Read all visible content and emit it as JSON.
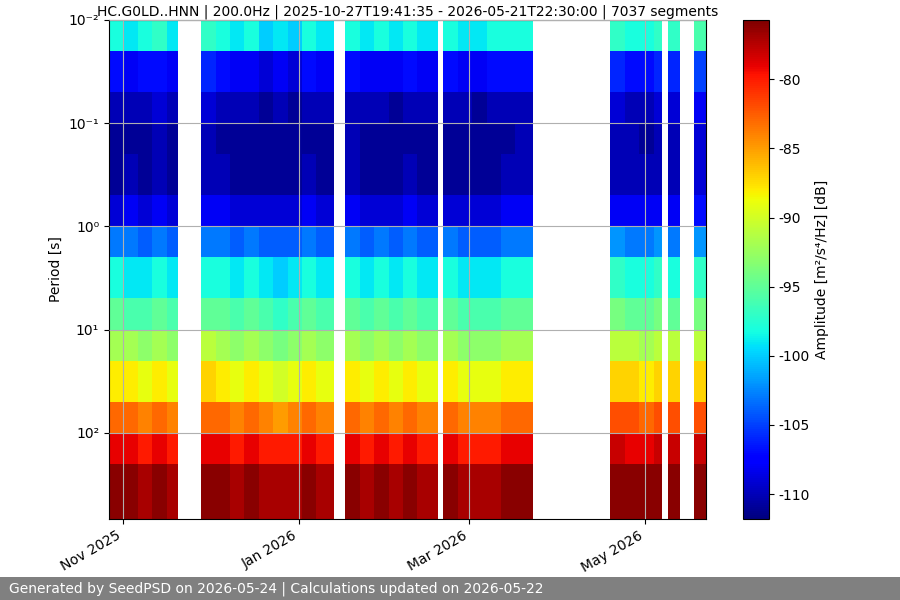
{
  "chart_data": {
    "type": "heatmap",
    "title": "HC.G0LD..HNN | 200.0Hz | 2025-10-27T19:41:35 - 2026-05-21T22:30:00 | 7037 segments",
    "y_label": "Period [s]",
    "colorbar_label": "Amplitude [m²/s⁴/Hz] [dB]",
    "footer": "Generated by SeedPSD on 2026-05-24 | Calculations updated on 2026-05-22",
    "log": "y",
    "grid": true,
    "x": [
      "2025-10-27",
      "2025-11-01",
      "2025-11-06",
      "2025-11-11",
      "2025-11-16",
      "2025-11-20",
      "2025-11-28",
      "2025-12-03",
      "2025-12-08",
      "2025-12-13",
      "2025-12-18",
      "2025-12-23",
      "2025-12-28",
      "2026-01-02",
      "2026-01-07",
      "2026-01-13",
      "2026-01-17",
      "2026-01-22",
      "2026-01-27",
      "2026-02-01",
      "2026-02-06",
      "2026-02-11",
      "2026-02-18",
      "2026-02-20",
      "2026-02-25",
      "2026-03-02",
      "2026-03-07",
      "2026-03-12",
      "2026-03-17",
      "2026-03-23",
      "2026-04-19",
      "2026-04-24",
      "2026-04-29",
      "2026-05-04",
      "2026-05-07",
      "2026-05-09",
      "2026-05-13",
      "2026-05-18",
      "2026-05-22"
    ],
    "periods": [
      0.01,
      0.02,
      0.05,
      0.1,
      0.2,
      0.5,
      1,
      2,
      5,
      10,
      20,
      50,
      100,
      200,
      684
    ],
    "cells": [
      [
        -98,
        -107,
        -110,
        -111,
        -111,
        -109,
        -103,
        -98,
        -95,
        -92,
        -88,
        -83,
        -79,
        -76
      ],
      [
        -99,
        -108,
        -110,
        -111,
        -110,
        -108,
        -103,
        -99,
        -96,
        -92,
        -88,
        -83,
        -79,
        -76
      ],
      [
        -98,
        -107,
        -110,
        -111,
        -111,
        -109,
        -104,
        -99,
        -96,
        -93,
        -89,
        -84,
        -80,
        -77
      ],
      [
        -97,
        -107,
        -109,
        -110,
        -110,
        -108,
        -103,
        -98,
        -95,
        -92,
        -88,
        -83,
        -79,
        -76
      ],
      [
        -99,
        -108,
        -110,
        -111,
        -111,
        -109,
        -104,
        -99,
        -96,
        -93,
        -89,
        -84,
        -80,
        -77
      ],
      null,
      [
        -97,
        -106,
        -109,
        -110,
        -110,
        -108,
        -103,
        -98,
        -95,
        -91,
        -87,
        -83,
        -79,
        -76
      ],
      [
        -98,
        -107,
        -110,
        -111,
        -110,
        -108,
        -103,
        -98,
        -95,
        -92,
        -88,
        -83,
        -79,
        -76
      ],
      [
        -99,
        -108,
        -110,
        -111,
        -111,
        -109,
        -104,
        -99,
        -96,
        -93,
        -89,
        -84,
        -80,
        -77
      ],
      [
        -98,
        -108,
        -110,
        -111,
        -111,
        -109,
        -103,
        -98,
        -95,
        -92,
        -88,
        -83,
        -79,
        -76
      ],
      [
        -100,
        -109,
        -111,
        -111,
        -111,
        -109,
        -104,
        -99,
        -96,
        -93,
        -89,
        -84,
        -80,
        -77
      ],
      [
        -99,
        -108,
        -110,
        -111,
        -111,
        -109,
        -104,
        -100,
        -97,
        -94,
        -90,
        -85,
        -80,
        -77
      ],
      [
        -100,
        -109,
        -111,
        -111,
        -111,
        -109,
        -104,
        -99,
        -96,
        -93,
        -89,
        -84,
        -80,
        -77
      ],
      [
        -98,
        -107,
        -110,
        -111,
        -110,
        -108,
        -103,
        -98,
        -95,
        -92,
        -88,
        -83,
        -79,
        -76
      ],
      [
        -99,
        -108,
        -110,
        -111,
        -111,
        -109,
        -104,
        -99,
        -96,
        -93,
        -89,
        -84,
        -80,
        -77
      ],
      null,
      [
        -98,
        -107,
        -110,
        -110,
        -110,
        -108,
        -103,
        -98,
        -95,
        -92,
        -88,
        -83,
        -79,
        -76
      ],
      [
        -99,
        -108,
        -110,
        -111,
        -111,
        -109,
        -104,
        -99,
        -96,
        -93,
        -89,
        -84,
        -80,
        -77
      ],
      [
        -98,
        -108,
        -110,
        -111,
        -111,
        -109,
        -103,
        -98,
        -95,
        -92,
        -88,
        -83,
        -79,
        -76
      ],
      [
        -99,
        -108,
        -111,
        -111,
        -111,
        -109,
        -104,
        -99,
        -96,
        -93,
        -89,
        -84,
        -80,
        -77
      ],
      [
        -98,
        -107,
        -110,
        -111,
        -110,
        -108,
        -103,
        -98,
        -95,
        -92,
        -88,
        -83,
        -79,
        -76
      ],
      [
        -99,
        -108,
        -110,
        -111,
        -111,
        -109,
        -104,
        -99,
        -96,
        -93,
        -89,
        -84,
        -80,
        -77
      ],
      null,
      [
        -98,
        -107,
        -110,
        -111,
        -111,
        -109,
        -103,
        -98,
        -95,
        -92,
        -88,
        -83,
        -79,
        -76
      ],
      [
        -99,
        -108,
        -110,
        -111,
        -111,
        -109,
        -104,
        -99,
        -96,
        -93,
        -89,
        -84,
        -80,
        -77
      ],
      [
        -99,
        -108,
        -111,
        -111,
        -111,
        -109,
        -104,
        -99,
        -96,
        -93,
        -89,
        -84,
        -80,
        -77
      ],
      [
        -98,
        -107,
        -110,
        -111,
        -111,
        -109,
        -104,
        -99,
        -96,
        -93,
        -89,
        -84,
        -80,
        -77
      ],
      [
        -98,
        -107,
        -110,
        -111,
        -110,
        -108,
        -103,
        -98,
        -95,
        -92,
        -88,
        -83,
        -79,
        -76
      ],
      [
        -98,
        -107,
        -110,
        -110,
        -110,
        -108,
        -103,
        -98,
        -95,
        -92,
        -88,
        -83,
        -79,
        -76
      ],
      null,
      [
        -97,
        -106,
        -109,
        -110,
        -110,
        -108,
        -102,
        -97,
        -94,
        -91,
        -87,
        -82,
        -78,
        -76
      ],
      [
        -98,
        -107,
        -110,
        -110,
        -110,
        -108,
        -103,
        -98,
        -95,
        -91,
        -87,
        -82,
        -79,
        -76
      ],
      [
        -98,
        -107,
        -110,
        -111,
        -110,
        -108,
        -103,
        -98,
        -95,
        -92,
        -88,
        -83,
        -79,
        -76
      ],
      [
        -97,
        -106,
        -109,
        -110,
        -110,
        -108,
        -102,
        -97,
        -94,
        -91,
        -87,
        -82,
        -78,
        -76
      ],
      null,
      [
        -97,
        -106,
        -109,
        -110,
        -110,
        -108,
        -103,
        -98,
        -95,
        -91,
        -87,
        -82,
        -78,
        -76
      ],
      null,
      [
        -96,
        -105,
        -108,
        -109,
        -109,
        -107,
        -102,
        -97,
        -94,
        -91,
        -87,
        -82,
        -78,
        -76
      ]
    ],
    "xlim": [
      "2025-10-27",
      "2026-05-22"
    ],
    "xticks": [
      {
        "value": "2025-11-01",
        "label": "Nov 2025"
      },
      {
        "value": "2026-01-01",
        "label": "Jan 2026"
      },
      {
        "value": "2026-03-01",
        "label": "Mar 2026"
      },
      {
        "value": "2026-05-01",
        "label": "May 2026"
      }
    ],
    "ylim": [
      684,
      0.01
    ],
    "yticks": [
      {
        "value": 0.01,
        "label": "10⁻²"
      },
      {
        "value": 0.1,
        "label": "10⁻¹"
      },
      {
        "value": 1,
        "label": "10⁰"
      },
      {
        "value": 10,
        "label": "10¹"
      },
      {
        "value": 100,
        "label": "10²"
      }
    ],
    "colorbar_range": [
      -111.8,
      -75.7
    ],
    "colorbar_ticks": [
      -110,
      -105,
      -100,
      -95,
      -90,
      -85,
      -80
    ]
  }
}
